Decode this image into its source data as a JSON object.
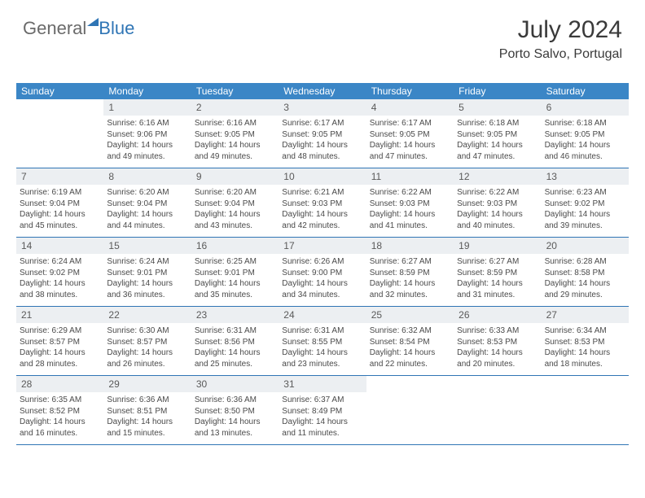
{
  "brand": {
    "part1": "General",
    "part2": "Blue"
  },
  "header": {
    "month": "July 2024",
    "location": "Porto Salvo, Portugal"
  },
  "colors": {
    "accent": "#3b86c6",
    "rule": "#2f75b5",
    "daynum_bg": "#eceff2",
    "text": "#3a3a3a"
  },
  "daysOfWeek": [
    "Sunday",
    "Monday",
    "Tuesday",
    "Wednesday",
    "Thursday",
    "Friday",
    "Saturday"
  ],
  "weeks": [
    [
      {
        "n": "",
        "sunrise": "",
        "sunset": "",
        "daylight": ""
      },
      {
        "n": "1",
        "sunrise": "Sunrise: 6:16 AM",
        "sunset": "Sunset: 9:06 PM",
        "daylight": "Daylight: 14 hours and 49 minutes."
      },
      {
        "n": "2",
        "sunrise": "Sunrise: 6:16 AM",
        "sunset": "Sunset: 9:05 PM",
        "daylight": "Daylight: 14 hours and 49 minutes."
      },
      {
        "n": "3",
        "sunrise": "Sunrise: 6:17 AM",
        "sunset": "Sunset: 9:05 PM",
        "daylight": "Daylight: 14 hours and 48 minutes."
      },
      {
        "n": "4",
        "sunrise": "Sunrise: 6:17 AM",
        "sunset": "Sunset: 9:05 PM",
        "daylight": "Daylight: 14 hours and 47 minutes."
      },
      {
        "n": "5",
        "sunrise": "Sunrise: 6:18 AM",
        "sunset": "Sunset: 9:05 PM",
        "daylight": "Daylight: 14 hours and 47 minutes."
      },
      {
        "n": "6",
        "sunrise": "Sunrise: 6:18 AM",
        "sunset": "Sunset: 9:05 PM",
        "daylight": "Daylight: 14 hours and 46 minutes."
      }
    ],
    [
      {
        "n": "7",
        "sunrise": "Sunrise: 6:19 AM",
        "sunset": "Sunset: 9:04 PM",
        "daylight": "Daylight: 14 hours and 45 minutes."
      },
      {
        "n": "8",
        "sunrise": "Sunrise: 6:20 AM",
        "sunset": "Sunset: 9:04 PM",
        "daylight": "Daylight: 14 hours and 44 minutes."
      },
      {
        "n": "9",
        "sunrise": "Sunrise: 6:20 AM",
        "sunset": "Sunset: 9:04 PM",
        "daylight": "Daylight: 14 hours and 43 minutes."
      },
      {
        "n": "10",
        "sunrise": "Sunrise: 6:21 AM",
        "sunset": "Sunset: 9:03 PM",
        "daylight": "Daylight: 14 hours and 42 minutes."
      },
      {
        "n": "11",
        "sunrise": "Sunrise: 6:22 AM",
        "sunset": "Sunset: 9:03 PM",
        "daylight": "Daylight: 14 hours and 41 minutes."
      },
      {
        "n": "12",
        "sunrise": "Sunrise: 6:22 AM",
        "sunset": "Sunset: 9:03 PM",
        "daylight": "Daylight: 14 hours and 40 minutes."
      },
      {
        "n": "13",
        "sunrise": "Sunrise: 6:23 AM",
        "sunset": "Sunset: 9:02 PM",
        "daylight": "Daylight: 14 hours and 39 minutes."
      }
    ],
    [
      {
        "n": "14",
        "sunrise": "Sunrise: 6:24 AM",
        "sunset": "Sunset: 9:02 PM",
        "daylight": "Daylight: 14 hours and 38 minutes."
      },
      {
        "n": "15",
        "sunrise": "Sunrise: 6:24 AM",
        "sunset": "Sunset: 9:01 PM",
        "daylight": "Daylight: 14 hours and 36 minutes."
      },
      {
        "n": "16",
        "sunrise": "Sunrise: 6:25 AM",
        "sunset": "Sunset: 9:01 PM",
        "daylight": "Daylight: 14 hours and 35 minutes."
      },
      {
        "n": "17",
        "sunrise": "Sunrise: 6:26 AM",
        "sunset": "Sunset: 9:00 PM",
        "daylight": "Daylight: 14 hours and 34 minutes."
      },
      {
        "n": "18",
        "sunrise": "Sunrise: 6:27 AM",
        "sunset": "Sunset: 8:59 PM",
        "daylight": "Daylight: 14 hours and 32 minutes."
      },
      {
        "n": "19",
        "sunrise": "Sunrise: 6:27 AM",
        "sunset": "Sunset: 8:59 PM",
        "daylight": "Daylight: 14 hours and 31 minutes."
      },
      {
        "n": "20",
        "sunrise": "Sunrise: 6:28 AM",
        "sunset": "Sunset: 8:58 PM",
        "daylight": "Daylight: 14 hours and 29 minutes."
      }
    ],
    [
      {
        "n": "21",
        "sunrise": "Sunrise: 6:29 AM",
        "sunset": "Sunset: 8:57 PM",
        "daylight": "Daylight: 14 hours and 28 minutes."
      },
      {
        "n": "22",
        "sunrise": "Sunrise: 6:30 AM",
        "sunset": "Sunset: 8:57 PM",
        "daylight": "Daylight: 14 hours and 26 minutes."
      },
      {
        "n": "23",
        "sunrise": "Sunrise: 6:31 AM",
        "sunset": "Sunset: 8:56 PM",
        "daylight": "Daylight: 14 hours and 25 minutes."
      },
      {
        "n": "24",
        "sunrise": "Sunrise: 6:31 AM",
        "sunset": "Sunset: 8:55 PM",
        "daylight": "Daylight: 14 hours and 23 minutes."
      },
      {
        "n": "25",
        "sunrise": "Sunrise: 6:32 AM",
        "sunset": "Sunset: 8:54 PM",
        "daylight": "Daylight: 14 hours and 22 minutes."
      },
      {
        "n": "26",
        "sunrise": "Sunrise: 6:33 AM",
        "sunset": "Sunset: 8:53 PM",
        "daylight": "Daylight: 14 hours and 20 minutes."
      },
      {
        "n": "27",
        "sunrise": "Sunrise: 6:34 AM",
        "sunset": "Sunset: 8:53 PM",
        "daylight": "Daylight: 14 hours and 18 minutes."
      }
    ],
    [
      {
        "n": "28",
        "sunrise": "Sunrise: 6:35 AM",
        "sunset": "Sunset: 8:52 PM",
        "daylight": "Daylight: 14 hours and 16 minutes."
      },
      {
        "n": "29",
        "sunrise": "Sunrise: 6:36 AM",
        "sunset": "Sunset: 8:51 PM",
        "daylight": "Daylight: 14 hours and 15 minutes."
      },
      {
        "n": "30",
        "sunrise": "Sunrise: 6:36 AM",
        "sunset": "Sunset: 8:50 PM",
        "daylight": "Daylight: 14 hours and 13 minutes."
      },
      {
        "n": "31",
        "sunrise": "Sunrise: 6:37 AM",
        "sunset": "Sunset: 8:49 PM",
        "daylight": "Daylight: 14 hours and 11 minutes."
      },
      {
        "n": "",
        "sunrise": "",
        "sunset": "",
        "daylight": ""
      },
      {
        "n": "",
        "sunrise": "",
        "sunset": "",
        "daylight": ""
      },
      {
        "n": "",
        "sunrise": "",
        "sunset": "",
        "daylight": ""
      }
    ]
  ]
}
